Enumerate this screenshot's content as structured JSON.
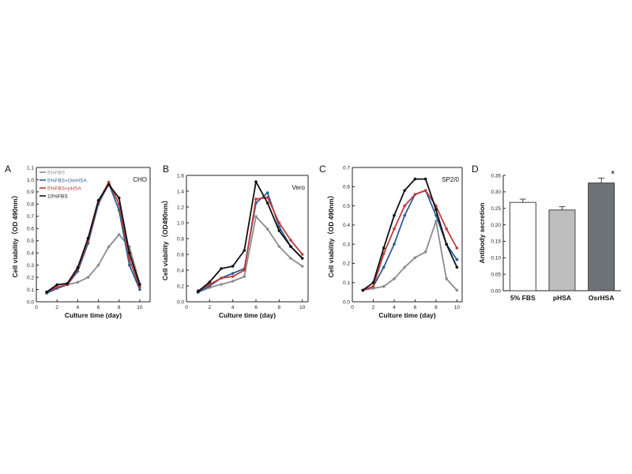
{
  "chart_data": [
    {
      "panel": "A",
      "type": "line",
      "cell_label": "CHO",
      "xlabel": "Culture time (day)",
      "ylabel": "Cell viability（OD 490nm）",
      "x": [
        1,
        2,
        3,
        4,
        5,
        6,
        7,
        8,
        9,
        10
      ],
      "xlim": [
        0,
        11
      ],
      "xticks": [
        0,
        2,
        4,
        6,
        8,
        10
      ],
      "ylim": [
        0,
        1.1
      ],
      "yticks": [
        0.0,
        0.1,
        0.2,
        0.3,
        0.4,
        0.5,
        0.6,
        0.7,
        0.8,
        0.9,
        1.0,
        1.1
      ],
      "ytick_labels": [
        "0.0",
        "0.1",
        "0.2",
        "0.3",
        "0.4",
        "0.5",
        "0.6",
        "0.7",
        "0.8",
        "0.9",
        "1.0",
        "1.1"
      ],
      "legend": "top-left",
      "series": [
        {
          "name": "5%FBS",
          "color": "#8c8c8c",
          "values": [
            0.08,
            0.12,
            0.14,
            0.16,
            0.2,
            0.3,
            0.45,
            0.55,
            0.45,
            0.15
          ]
        },
        {
          "name": "5%FBS+OsrHSA",
          "color": "#2e5c9a",
          "values": [
            0.07,
            0.11,
            0.14,
            0.25,
            0.48,
            0.8,
            0.97,
            0.75,
            0.3,
            0.1
          ]
        },
        {
          "name": "5%FBS+pHSA",
          "color": "#c03a3a",
          "values": [
            0.08,
            0.12,
            0.14,
            0.27,
            0.5,
            0.82,
            0.98,
            0.8,
            0.35,
            0.12
          ]
        },
        {
          "name": "10%FBS",
          "color": "#111111",
          "values": [
            0.08,
            0.14,
            0.15,
            0.28,
            0.52,
            0.83,
            0.96,
            0.85,
            0.4,
            0.14
          ]
        }
      ]
    },
    {
      "panel": "B",
      "type": "line",
      "cell_label": "Vero",
      "xlabel": "Culture time (day)",
      "ylabel": "Cell viability（OD490nm）",
      "x": [
        1,
        2,
        3,
        4,
        5,
        6,
        7,
        8,
        9,
        10
      ],
      "xlim": [
        0,
        10.5
      ],
      "xticks": [
        0,
        2,
        4,
        6,
        8,
        10
      ],
      "ylim": [
        0,
        1.6
      ],
      "yticks": [
        0.0,
        0.2,
        0.4,
        0.6,
        0.8,
        1.0,
        1.2,
        1.4,
        1.6
      ],
      "ytick_labels": [
        "0.0",
        "0.2",
        "0.4",
        "0.6",
        "0.8",
        "1.0",
        "1.2",
        "1.4",
        "1.6"
      ],
      "series": [
        {
          "name": "5%FBS",
          "color": "#8c8c8c",
          "values": [
            0.12,
            0.18,
            0.22,
            0.26,
            0.32,
            1.08,
            0.92,
            0.7,
            0.55,
            0.45
          ]
        },
        {
          "name": "5%FBS+OsrHSA",
          "color": "#2e5c9a",
          "values": [
            0.12,
            0.2,
            0.3,
            0.36,
            0.42,
            1.25,
            1.38,
            0.95,
            0.7,
            0.55
          ]
        },
        {
          "name": "5%FBS+pHSA",
          "color": "#c03a3a",
          "values": [
            0.14,
            0.22,
            0.3,
            0.32,
            0.4,
            1.3,
            1.32,
            1.0,
            0.78,
            0.6
          ]
        },
        {
          "name": "10%FBS",
          "color": "#111111",
          "values": [
            0.13,
            0.25,
            0.42,
            0.45,
            0.65,
            1.52,
            1.25,
            0.9,
            0.7,
            0.55
          ]
        }
      ]
    },
    {
      "panel": "C",
      "type": "line",
      "cell_label": "SP2/0",
      "xlabel": "Culture time (day)",
      "ylabel": "Cell viability（OD 490nm）",
      "x": [
        1,
        2,
        3,
        4,
        5,
        6,
        7,
        8,
        9,
        10
      ],
      "xlim": [
        0,
        10.5
      ],
      "xticks": [
        0,
        2,
        4,
        6,
        8,
        10
      ],
      "ylim": [
        0,
        0.7
      ],
      "yticks": [
        0.0,
        0.1,
        0.2,
        0.3,
        0.4,
        0.5,
        0.6,
        0.7
      ],
      "ytick_labels": [
        "0.0",
        "0.1",
        "0.2",
        "0.3",
        "0.4",
        "0.5",
        "0.6",
        "0.7"
      ],
      "series": [
        {
          "name": "5%FBS",
          "color": "#8c8c8c",
          "values": [
            0.06,
            0.07,
            0.08,
            0.12,
            0.18,
            0.23,
            0.26,
            0.42,
            0.12,
            0.06
          ]
        },
        {
          "name": "5%FBS+OsrHSA",
          "color": "#2e5c9a",
          "values": [
            0.06,
            0.08,
            0.18,
            0.3,
            0.45,
            0.56,
            0.58,
            0.45,
            0.3,
            0.22
          ]
        },
        {
          "name": "5%FBS+pHSA",
          "color": "#c03a3a",
          "values": [
            0.06,
            0.08,
            0.25,
            0.38,
            0.5,
            0.56,
            0.58,
            0.5,
            0.38,
            0.28
          ]
        },
        {
          "name": "10%FBS",
          "color": "#111111",
          "values": [
            0.06,
            0.1,
            0.28,
            0.45,
            0.58,
            0.64,
            0.64,
            0.48,
            0.3,
            0.18
          ]
        }
      ]
    },
    {
      "panel": "D",
      "type": "bar",
      "ylabel": "Antibody secretion",
      "categories": [
        "5% FBS",
        "pHSA",
        "OsrHSA"
      ],
      "values": [
        0.268,
        0.245,
        0.327
      ],
      "errors": [
        0.01,
        0.01,
        0.015
      ],
      "colors": [
        "#ffffff",
        "#bdbdbd",
        "#6e7378"
      ],
      "annotations": [
        "",
        "",
        "*"
      ],
      "ylim": [
        0,
        0.35
      ],
      "yticks": [
        0.0,
        0.05,
        0.1,
        0.15,
        0.2,
        0.25,
        0.3,
        0.35
      ],
      "ytick_labels": [
        "0.00",
        "0.05",
        "0.10",
        "0.15",
        "0.20",
        "0.25",
        "0.30",
        "0.35"
      ]
    }
  ]
}
